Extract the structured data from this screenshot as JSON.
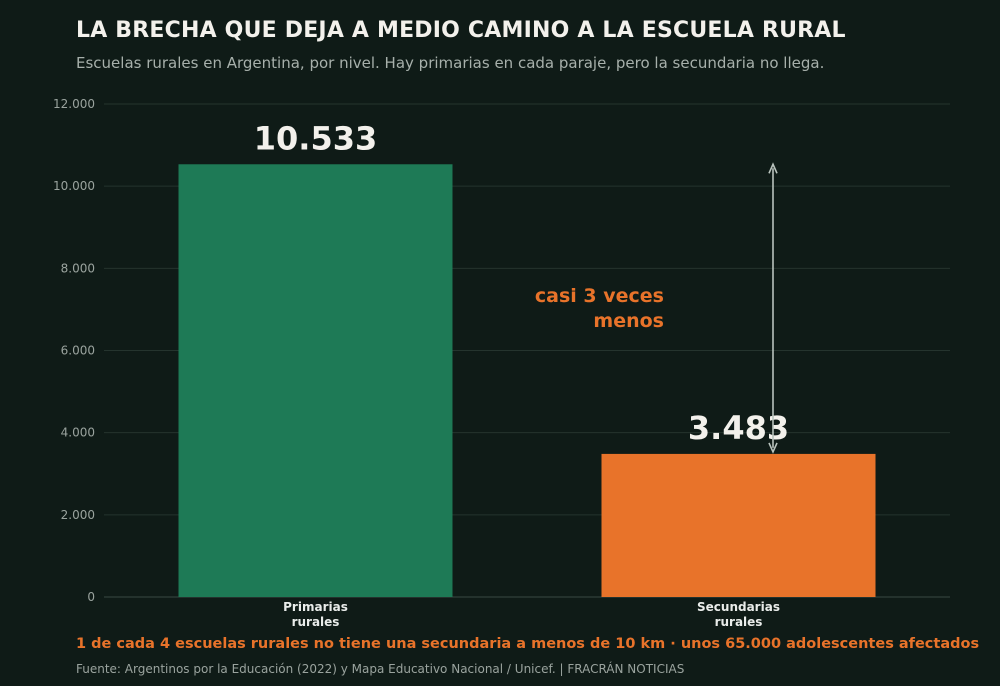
{
  "header": {
    "title": "LA BRECHA QUE DEJA A MEDIO CAMINO A LA ESCUELA RURAL",
    "subtitle": "Escuelas rurales en Argentina, por nivel. Hay primarias en cada paraje, pero la secundaria no llega."
  },
  "chart_data": {
    "type": "bar",
    "categories": [
      [
        "Primarias",
        "rurales"
      ],
      [
        "Secundarias",
        "rurales"
      ]
    ],
    "values": [
      10533,
      3483
    ],
    "value_labels": [
      "10.533",
      "3.483"
    ],
    "colors": [
      "#1e7a56",
      "#e8732a"
    ],
    "ylim": [
      0,
      12000
    ],
    "yticks": [
      0,
      2000,
      4000,
      6000,
      8000,
      10000,
      12000
    ],
    "ytick_labels": [
      "0",
      "2.000",
      "4.000",
      "6.000",
      "8.000",
      "10.000",
      "12.000"
    ],
    "grid": true,
    "annotation": {
      "lines": [
        "casi 3 veces",
        "menos"
      ],
      "color": "#e8732a",
      "arrow_from_value": 10533,
      "arrow_to_value": 3483
    }
  },
  "footer": {
    "note": "1 de cada 4 escuelas rurales no tiene una secundaria a menos de 10 km  ·  unos 65.000 adolescentes afectados",
    "source": "Fuente: Argentinos por la Educación (2022) y Mapa Educativo Nacional / Unicef.  |  FRACRÁN NOTICIAS"
  }
}
